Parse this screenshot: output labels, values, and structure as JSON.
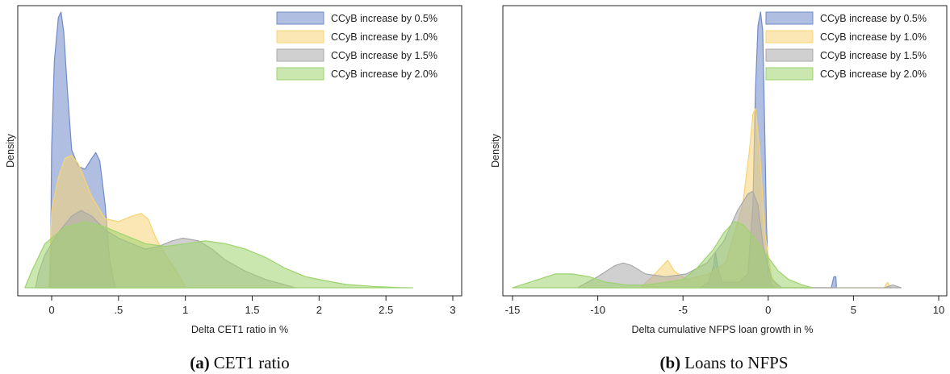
{
  "chart_data": [
    {
      "type": "area",
      "caption_label": "(a)",
      "caption_text": "CET1 ratio",
      "xlabel": "Delta CET1 ratio in %",
      "ylabel": "Density",
      "xlim": [
        -0.25,
        3.0
      ],
      "ylim": [
        0,
        1.0
      ],
      "xticks": [
        0,
        0.5,
        1,
        1.5,
        2,
        2.5,
        3
      ],
      "xtick_labels": [
        "0",
        ".5",
        "1",
        "1.5",
        "2",
        "2.5",
        "3"
      ],
      "legend_position": "top-right",
      "series": [
        {
          "name": "CCyB increase by 0.5%",
          "color": "#6f8bc8",
          "x": [
            -0.01,
            0.0,
            0.02,
            0.05,
            0.07,
            0.09,
            0.12,
            0.15,
            0.2,
            0.25,
            0.3,
            0.33,
            0.36,
            0.4,
            0.43,
            0.46,
            0.48
          ],
          "y": [
            0,
            0.51,
            0.82,
            0.98,
            1.0,
            0.93,
            0.7,
            0.5,
            0.44,
            0.43,
            0.47,
            0.49,
            0.46,
            0.3,
            0.12,
            0.03,
            0
          ]
        },
        {
          "name": "CCyB increase by 1.0%",
          "color": "#f7d474",
          "x": [
            -0.02,
            0.0,
            0.05,
            0.1,
            0.15,
            0.2,
            0.3,
            0.4,
            0.5,
            0.6,
            0.67,
            0.72,
            0.78,
            0.85,
            0.92,
            0.97,
            1.0
          ],
          "y": [
            0,
            0.28,
            0.4,
            0.47,
            0.48,
            0.45,
            0.33,
            0.25,
            0.24,
            0.26,
            0.27,
            0.25,
            0.18,
            0.12,
            0.07,
            0.03,
            0
          ]
        },
        {
          "name": "CCyB increase by 1.5%",
          "color": "#a9a9a9",
          "x": [
            -0.12,
            -0.1,
            -0.05,
            0.05,
            0.15,
            0.22,
            0.3,
            0.4,
            0.5,
            0.6,
            0.7,
            0.8,
            0.9,
            0.98,
            1.1,
            1.2,
            1.3,
            1.45,
            1.6,
            1.75,
            1.82
          ],
          "y": [
            0,
            0.05,
            0.12,
            0.2,
            0.26,
            0.28,
            0.26,
            0.21,
            0.18,
            0.16,
            0.14,
            0.15,
            0.17,
            0.18,
            0.17,
            0.14,
            0.1,
            0.06,
            0.03,
            0.01,
            0
          ]
        },
        {
          "name": "CCyB increase by 2.0%",
          "color": "#9dd36e",
          "x": [
            -0.2,
            -0.15,
            -0.05,
            0.1,
            0.25,
            0.4,
            0.55,
            0.7,
            0.85,
            1.0,
            1.15,
            1.3,
            1.45,
            1.6,
            1.75,
            1.9,
            2.05,
            2.2,
            2.4,
            2.6,
            2.7
          ],
          "y": [
            0,
            0.06,
            0.16,
            0.22,
            0.24,
            0.22,
            0.19,
            0.16,
            0.15,
            0.16,
            0.17,
            0.16,
            0.14,
            0.11,
            0.07,
            0.04,
            0.025,
            0.012,
            0.005,
            0.001,
            0
          ]
        }
      ]
    },
    {
      "type": "area",
      "caption_label": "(b)",
      "caption_text": "Loans to NFPS",
      "xlabel": "Delta cumulative NFPS loan growth in %",
      "ylabel": "Density",
      "xlim": [
        -15.8,
        11.0
      ],
      "ylim": [
        0,
        1.0
      ],
      "xticks": [
        -15,
        -10,
        -5,
        0,
        5,
        10
      ],
      "xtick_labels": [
        "-15",
        "-10",
        "-5",
        "0",
        "5",
        "10"
      ],
      "legend_position": "top-right",
      "series": [
        {
          "name": "CCyB increase by 0.5%",
          "color": "#6f8bc8",
          "x": [
            -4.0,
            -3.5,
            -3.2,
            -3.1,
            -2.95,
            -2.7,
            -2.2,
            -1.7,
            -1.2,
            -0.9,
            -0.75,
            -0.6,
            -0.45,
            -0.32,
            -0.2,
            -0.1,
            0.0,
            0.2,
            0.4,
            3.7,
            3.85,
            3.97,
            4.0
          ],
          "y": [
            0,
            0.02,
            0.08,
            0.13,
            0.07,
            0.02,
            0.02,
            0.02,
            0.05,
            0.3,
            0.72,
            0.95,
            1.0,
            0.93,
            0.55,
            0.22,
            0.05,
            0.01,
            0,
            0,
            0.04,
            0.04,
            0
          ]
        },
        {
          "name": "CCyB increase by 1.0%",
          "color": "#f7d474",
          "x": [
            -7.5,
            -6.8,
            -6.2,
            -5.9,
            -5.5,
            -4.8,
            -3.5,
            -2.5,
            -1.5,
            -1.1,
            -0.9,
            -0.75,
            -0.5,
            -0.2,
            0.2,
            0.6,
            6.8,
            7.0,
            7.2
          ],
          "y": [
            0,
            0.04,
            0.08,
            0.1,
            0.06,
            0.03,
            0.05,
            0.09,
            0.3,
            0.5,
            0.63,
            0.65,
            0.5,
            0.2,
            0.04,
            0,
            0,
            0.02,
            0
          ]
        },
        {
          "name": "CCyB increase by 1.5%",
          "color": "#a9a9a9",
          "x": [
            -11.2,
            -10.0,
            -9.0,
            -8.5,
            -8.0,
            -7.2,
            -6.0,
            -4.8,
            -3.6,
            -2.6,
            -1.8,
            -1.2,
            -0.9,
            -0.6,
            -0.3,
            0.2,
            0.8,
            6.8,
            7.3,
            7.8
          ],
          "y": [
            0,
            0.04,
            0.08,
            0.09,
            0.08,
            0.05,
            0.04,
            0.05,
            0.09,
            0.17,
            0.28,
            0.34,
            0.35,
            0.3,
            0.15,
            0.03,
            0,
            0,
            0.01,
            0
          ]
        },
        {
          "name": "CCyB increase by 2.0%",
          "color": "#9dd36e",
          "x": [
            -15.0,
            -14.0,
            -12.5,
            -11.5,
            -10.5,
            -9.5,
            -8.3,
            -7.2,
            -6.0,
            -5.0,
            -4.2,
            -3.2,
            -2.6,
            -2.0,
            -1.5,
            -0.8,
            0.0,
            0.6,
            1.2,
            2.0,
            2.6
          ],
          "y": [
            0,
            0.02,
            0.05,
            0.05,
            0.04,
            0.02,
            0.01,
            0.01,
            0.02,
            0.03,
            0.07,
            0.14,
            0.2,
            0.24,
            0.23,
            0.18,
            0.11,
            0.06,
            0.03,
            0.01,
            0
          ]
        }
      ]
    }
  ]
}
